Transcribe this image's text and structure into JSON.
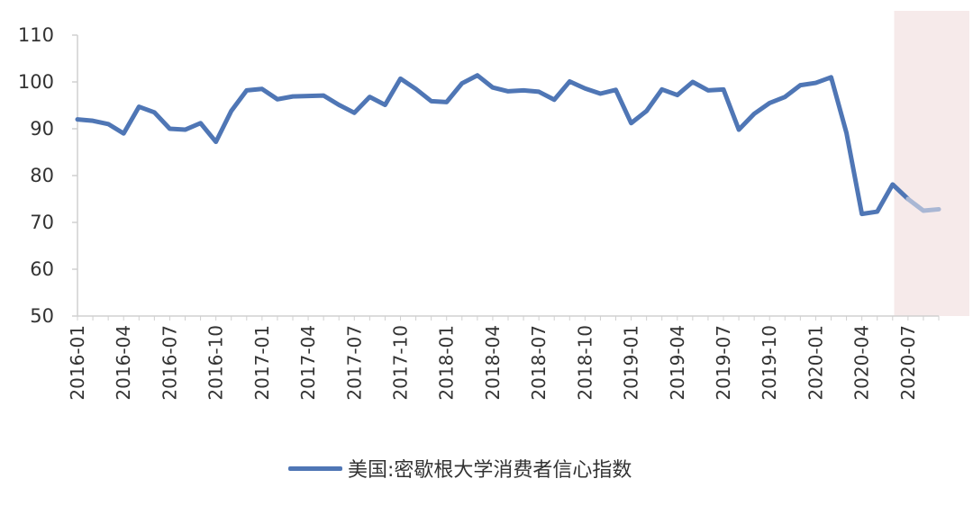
{
  "chart_data": {
    "type": "line",
    "title": "",
    "xlabel": "",
    "ylabel": "",
    "ylim": [
      50,
      110
    ],
    "yticks": [
      "50",
      "60",
      "70",
      "80",
      "90",
      "100",
      "110"
    ],
    "xtick_labels": [
      "2016-01",
      "2016-04",
      "2016-07",
      "2016-10",
      "2017-01",
      "2017-04",
      "2017-07",
      "2017-10",
      "2018-01",
      "2018-04",
      "2018-07",
      "2018-10",
      "2019-01",
      "2019-04",
      "2019-07",
      "2019-10",
      "2020-01",
      "2020-04",
      "2020-07"
    ],
    "grid": false,
    "legend_position": "bottom",
    "highlight_region": {
      "from": "2020-07",
      "to": "2020-09",
      "color": "#f6eaea"
    },
    "series": [
      {
        "name": "美国:密歇根大学消费者信心指数",
        "color": "#4f76b5",
        "x": [
          "2016-01",
          "2016-02",
          "2016-03",
          "2016-04",
          "2016-05",
          "2016-06",
          "2016-07",
          "2016-08",
          "2016-09",
          "2016-10",
          "2016-11",
          "2016-12",
          "2017-01",
          "2017-02",
          "2017-03",
          "2017-04",
          "2017-05",
          "2017-06",
          "2017-07",
          "2017-08",
          "2017-09",
          "2017-10",
          "2017-11",
          "2017-12",
          "2018-01",
          "2018-02",
          "2018-03",
          "2018-04",
          "2018-05",
          "2018-06",
          "2018-07",
          "2018-08",
          "2018-09",
          "2018-10",
          "2018-11",
          "2018-12",
          "2019-01",
          "2019-02",
          "2019-03",
          "2019-04",
          "2019-05",
          "2019-06",
          "2019-07",
          "2019-08",
          "2019-09",
          "2019-10",
          "2019-11",
          "2019-12",
          "2020-01",
          "2020-02",
          "2020-03",
          "2020-04",
          "2020-05",
          "2020-06",
          "2020-07",
          "2020-08",
          "2020-09"
        ],
        "values": [
          92.0,
          91.7,
          91.0,
          89.0,
          94.7,
          93.5,
          90.0,
          89.8,
          91.2,
          87.2,
          93.8,
          98.2,
          98.5,
          96.3,
          96.9,
          97.0,
          97.1,
          95.1,
          93.4,
          96.8,
          95.1,
          100.7,
          98.5,
          95.9,
          95.7,
          99.7,
          101.4,
          98.8,
          98.0,
          98.2,
          97.9,
          96.2,
          100.1,
          98.6,
          97.5,
          98.3,
          91.2,
          93.8,
          98.4,
          97.2,
          100.0,
          98.2,
          98.4,
          89.8,
          93.2,
          95.5,
          96.8,
          99.3,
          99.8,
          101.0,
          89.1,
          71.8,
          72.3,
          78.1,
          75.0,
          72.5,
          72.8
        ]
      }
    ]
  },
  "legend": {
    "label": "美国:密歇根大学消费者信心指数"
  }
}
